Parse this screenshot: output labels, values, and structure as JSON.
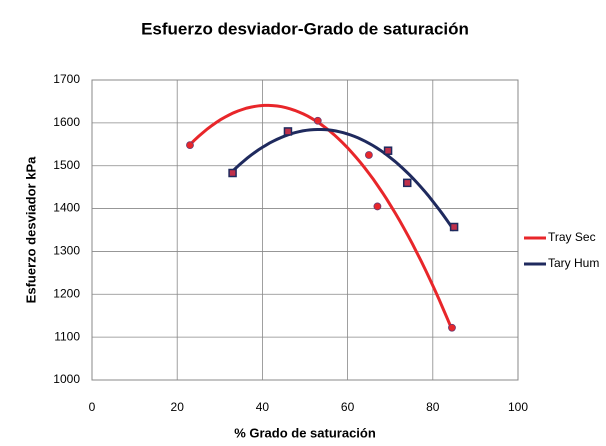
{
  "chart_data": {
    "type": "scatter",
    "title": "Esfuerzo desviador-Grado de saturación",
    "x_label": "% Grado de saturación",
    "y_label": "Esfuerzo desviador kPa",
    "xlim": [
      0,
      100
    ],
    "xticks": [
      0,
      20,
      40,
      60,
      80,
      100
    ],
    "ylim": [
      1000,
      1700
    ],
    "yticks": [
      1000,
      1100,
      1200,
      1300,
      1400,
      1500,
      1600,
      1700
    ],
    "grid": true,
    "legend": "right",
    "trendline": "polynomial",
    "series": [
      {
        "name": "Tray Sec",
        "color": "#e8262a",
        "marker": "circle",
        "x": [
          23,
          53,
          65,
          67,
          84.5
        ],
        "values": [
          1548,
          1605,
          1525,
          1405,
          1122
        ]
      },
      {
        "name": "Tary Hum",
        "color": "#1f2a5e",
        "marker": "square",
        "x": [
          33,
          46,
          69.5,
          74,
          85
        ],
        "values": [
          1483,
          1580,
          1535,
          1460,
          1357
        ]
      }
    ]
  }
}
